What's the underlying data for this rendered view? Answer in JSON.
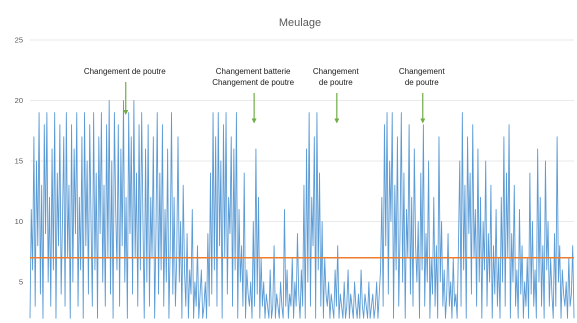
{
  "chart_data": {
    "type": "line",
    "title": "Meulage",
    "xlabel": "",
    "ylabel": "",
    "ylim": [
      1,
      25
    ],
    "y_ticks": [
      5,
      10,
      15,
      20,
      25
    ],
    "grid": "horizontal",
    "colors": {
      "series": "#5b9bd5",
      "threshold": "#ed7d31",
      "arrow": "#70ad47",
      "grid": "#e3e3e3",
      "text": "#595959"
    },
    "threshold": 7,
    "annotations": [
      {
        "id": "a1",
        "lines": [
          "Changement de poutre"
        ],
        "x_frac": 0.176,
        "y_value": 18.8
      },
      {
        "id": "a2",
        "lines": [
          "Changement batterie",
          "Changement de poutre"
        ],
        "x_frac": 0.412,
        "y_value": 18.1
      },
      {
        "id": "a3",
        "lines": [
          "Changement",
          "de poutre"
        ],
        "x_frac": 0.564,
        "y_value": 18.1
      },
      {
        "id": "a4",
        "lines": [
          "Changement",
          "de poutre"
        ],
        "x_frac": 0.722,
        "y_value": 18.1
      }
    ],
    "series": [
      {
        "values": [
          2,
          11,
          6,
          17,
          3,
          15,
          8,
          19,
          4,
          13,
          2,
          18,
          9,
          19,
          5,
          12,
          3,
          16,
          6,
          19,
          2,
          14,
          8,
          18,
          4,
          10,
          17,
          3,
          19,
          7,
          13,
          2,
          18,
          5,
          16,
          9,
          19,
          3,
          12,
          6,
          17,
          2,
          19,
          8,
          15,
          4,
          18,
          10,
          3,
          19,
          6,
          14,
          2,
          17,
          9,
          19,
          5,
          13,
          3,
          18,
          7,
          20,
          4,
          15,
          2,
          19,
          11,
          6,
          18,
          3,
          16,
          8,
          20,
          5,
          12,
          2,
          19,
          9,
          17,
          4,
          20,
          7,
          14,
          3,
          18,
          6,
          19,
          10,
          2,
          16,
          5,
          18,
          3,
          12,
          7,
          17,
          2,
          9,
          19,
          4,
          14,
          6,
          18,
          3,
          11,
          5,
          16,
          2,
          8,
          19,
          4,
          12,
          3,
          7,
          17,
          5,
          10,
          2,
          13,
          6,
          3,
          9,
          2,
          6,
          4,
          11,
          2,
          5,
          3,
          8,
          2,
          4,
          6,
          2,
          3,
          5,
          2,
          9,
          3,
          14,
          4,
          19,
          6,
          17,
          3,
          19,
          8,
          15,
          2,
          18,
          7,
          19,
          4,
          12,
          9,
          17,
          3,
          16,
          6,
          19,
          2,
          11,
          5,
          8,
          3,
          14,
          2,
          6,
          4,
          3,
          5,
          2,
          10,
          3,
          16,
          4,
          12,
          2,
          7,
          3,
          5,
          2,
          4,
          3,
          2,
          6,
          2,
          3,
          8,
          2,
          4,
          3,
          2,
          5,
          3,
          2,
          11,
          3,
          6,
          2,
          4,
          3,
          7,
          2,
          5,
          3,
          9,
          4,
          2,
          6,
          3,
          13,
          2,
          16,
          5,
          19,
          3,
          12,
          8,
          17,
          2,
          19,
          6,
          14,
          3,
          10,
          2,
          7,
          4,
          3,
          5,
          2,
          4,
          3,
          2,
          6,
          3,
          8,
          2,
          4,
          3,
          2,
          5,
          2,
          3,
          6,
          2,
          4,
          3,
          2,
          5,
          3,
          2,
          4,
          2,
          6,
          3,
          2,
          4,
          3,
          2,
          5,
          2,
          3,
          4,
          2,
          3,
          5,
          2,
          4,
          6,
          12,
          3,
          18,
          8,
          19,
          4,
          15,
          10,
          19,
          2,
          13,
          6,
          17,
          3,
          9,
          19,
          5,
          14,
          2,
          11,
          7,
          18,
          4,
          12,
          3,
          16,
          8,
          5,
          10,
          2,
          14,
          6,
          18,
          3,
          9,
          5,
          15,
          2,
          7,
          4,
          12,
          3,
          8,
          2,
          17,
          5,
          10,
          3,
          6,
          2,
          4,
          9,
          3,
          5,
          2,
          7,
          3,
          4,
          2,
          8,
          15,
          3,
          19,
          6,
          13,
          2,
          17,
          9,
          14,
          4,
          18,
          7,
          11,
          3,
          16,
          5,
          12,
          2,
          10,
          6,
          15,
          3,
          9,
          5,
          13,
          2,
          8,
          4,
          11,
          3,
          7,
          2,
          12,
          5,
          17,
          3,
          14,
          7,
          18,
          2,
          9,
          5,
          13,
          3,
          6,
          2,
          11,
          4,
          8,
          2,
          5,
          3,
          7,
          2,
          14,
          4,
          10,
          3,
          6,
          2,
          16,
          5,
          12,
          3,
          8,
          2,
          15,
          6,
          10,
          3,
          7,
          4,
          2,
          9,
          3,
          17,
          5,
          8,
          2,
          6,
          4,
          3,
          5,
          2,
          7,
          3,
          4,
          8,
          2
        ]
      }
    ]
  }
}
